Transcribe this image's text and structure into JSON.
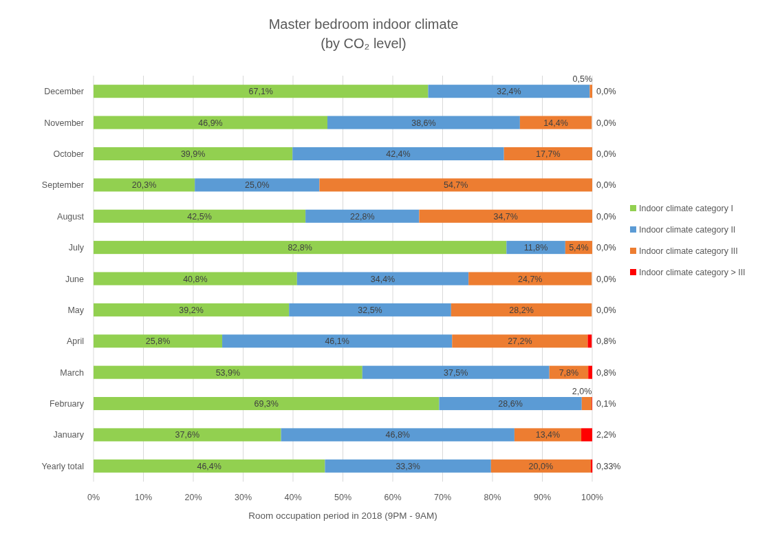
{
  "chart_data": {
    "type": "bar",
    "orientation": "horizontal",
    "stacked": true,
    "title": "Master bedroom indoor climate",
    "subtitle": "(by CO₂ level)",
    "xlabel": "Room occupation period in 2018 (9PM - 9AM)",
    "categories": [
      "December",
      "November",
      "October",
      "September",
      "August",
      "July",
      "June",
      "May",
      "April",
      "March",
      "February",
      "January",
      "Yearly total"
    ],
    "series": [
      {
        "name": "Indoor climate category I",
        "color": "#92d050",
        "values": [
          67.1,
          46.9,
          39.9,
          20.3,
          42.5,
          82.8,
          40.8,
          39.2,
          25.8,
          53.9,
          69.3,
          37.6,
          46.4
        ],
        "value_labels": [
          "67,1%",
          "46,9%",
          "39,9%",
          "20,3%",
          "42,5%",
          "82,8%",
          "40,8%",
          "39,2%",
          "25,8%",
          "53,9%",
          "69,3%",
          "37,6%",
          "46,4%"
        ]
      },
      {
        "name": "Indoor climate category II",
        "color": "#5b9bd5",
        "values": [
          32.4,
          38.6,
          42.4,
          25.0,
          22.8,
          11.8,
          34.4,
          32.5,
          46.1,
          37.5,
          28.6,
          46.8,
          33.3
        ],
        "value_labels": [
          "32,4%",
          "38,6%",
          "42,4%",
          "25,0%",
          "22,8%",
          "11,8%",
          "34,4%",
          "32,5%",
          "46,1%",
          "37,5%",
          "28,6%",
          "46,8%",
          "33,3%"
        ]
      },
      {
        "name": "Indoor climate category III",
        "color": "#ed7d31",
        "values": [
          0.5,
          14.4,
          17.7,
          54.7,
          34.7,
          5.4,
          24.7,
          28.2,
          27.2,
          7.8,
          2.0,
          13.4,
          20.0
        ],
        "value_labels": [
          "0,5%",
          "14,4%",
          "17,7%",
          "54,7%",
          "34,7%",
          "5,4%",
          "24,7%",
          "28,2%",
          "27,2%",
          "7,8%",
          "2,0%",
          "13,4%",
          "20,0%"
        ]
      },
      {
        "name": "Indoor climate category > III",
        "color": "#ff0000",
        "values": [
          0.0,
          0.0,
          0.0,
          0.0,
          0.0,
          0.0,
          0.0,
          0.0,
          0.8,
          0.8,
          0.1,
          2.2,
          0.33
        ],
        "value_labels": [
          "0,0%",
          "0,0%",
          "0,0%",
          "0,0%",
          "0,0%",
          "0,0%",
          "0,0%",
          "0,0%",
          "0,8%",
          "0,8%",
          "0,1%",
          "2,2%",
          "0,33%"
        ]
      }
    ],
    "xlim": [
      0,
      100
    ],
    "xticks": [
      {
        "value": 0,
        "label": "0%"
      },
      {
        "value": 10,
        "label": "10%"
      },
      {
        "value": 20,
        "label": "20%"
      },
      {
        "value": 30,
        "label": "30%"
      },
      {
        "value": 40,
        "label": "40%"
      },
      {
        "value": 50,
        "label": "50%"
      },
      {
        "value": 60,
        "label": "60%"
      },
      {
        "value": 70,
        "label": "70%"
      },
      {
        "value": 80,
        "label": "80%"
      },
      {
        "value": 90,
        "label": "90%"
      },
      {
        "value": 100,
        "label": "100%"
      }
    ],
    "grid": "x",
    "legend": "right"
  }
}
